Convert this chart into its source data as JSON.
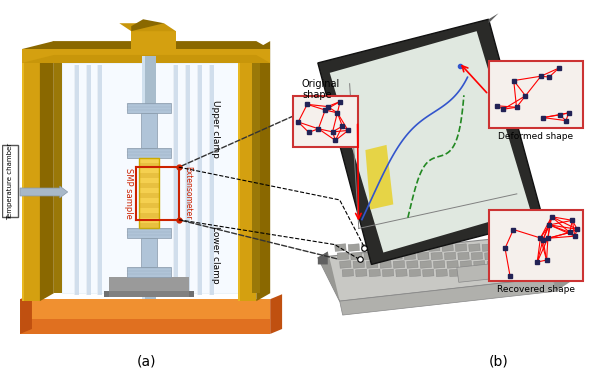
{
  "label_a": "(a)",
  "label_b": "(b)",
  "label_temp_chamber": "Temperature chamber",
  "label_upper_clamp": "Upper clamp",
  "label_lower_clamp": "Lower clamp",
  "label_smp_sample": "SMP sample",
  "label_extensometer": "Extensometer",
  "label_original_shape": "Original\nshape",
  "label_deformed_shape": "Deformed shape",
  "label_recovered_shape": "Recovered shape",
  "bg_color": "#ffffff",
  "frame_outer": "#7a6000",
  "frame_inner": "#c8960a",
  "frame_face": "#d4a010",
  "base_top": "#f09030",
  "base_side": "#c06010",
  "glass_color": "#ddeeff",
  "rod_color": "#c0d0e0",
  "clamp_color": "#b0c4d8",
  "clamp_dark": "#8899aa",
  "sample_color": "#f5d050",
  "sample_stripe": "#e8c040",
  "ext_color": "#cc2200",
  "laptop_body": "#d0d0cc",
  "laptop_dark": "#2a2a2a",
  "laptop_screen_bg": "#e8e8e0",
  "laptop_hinge": "#aaaaaa"
}
